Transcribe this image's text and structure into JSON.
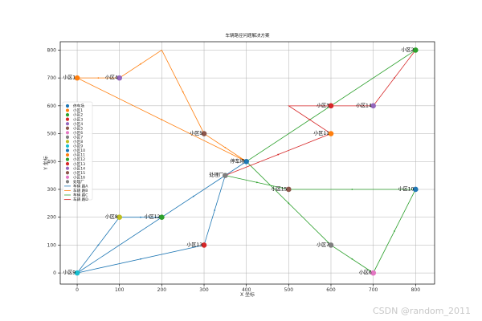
{
  "chart_data": {
    "type": "scatter",
    "title": "车辆路径问题解决方案",
    "xlabel": "X 坐标",
    "ylabel": "Y 坐标",
    "xlim": [
      -40,
      845
    ],
    "ylim": [
      -40,
      830
    ],
    "xticks": [
      0,
      100,
      200,
      300,
      400,
      500,
      600,
      700,
      800
    ],
    "yticks": [
      0,
      100,
      200,
      300,
      400,
      500,
      600,
      700,
      800
    ],
    "grid": true,
    "legend_position": "center-left",
    "points": [
      {
        "label": "停车场",
        "x": 400,
        "y": 400,
        "color": "#1f77b4"
      },
      {
        "label": "小区1",
        "x": 0,
        "y": 700,
        "color": "#ff7f0e"
      },
      {
        "label": "小区2",
        "x": 800,
        "y": 800,
        "color": "#2ca02c"
      },
      {
        "label": "小区3",
        "x": 600,
        "y": 600,
        "color": "#d62728"
      },
      {
        "label": "小区4",
        "x": 100,
        "y": 700,
        "color": "#9467bd"
      },
      {
        "label": "小区5",
        "x": 300,
        "y": 500,
        "color": "#8c564b"
      },
      {
        "label": "小区6",
        "x": 700,
        "y": 0,
        "color": "#e377c2"
      },
      {
        "label": "小区7",
        "x": 600,
        "y": 100,
        "color": "#7f7f7f"
      },
      {
        "label": "小区8",
        "x": 100,
        "y": 200,
        "color": "#bcbd22"
      },
      {
        "label": "小区9",
        "x": 0,
        "y": 0,
        "color": "#17becf"
      },
      {
        "label": "小区10",
        "x": 800,
        "y": 300,
        "color": "#1f77b4"
      },
      {
        "label": "小区11",
        "x": 600,
        "y": 500,
        "color": "#ff7f0e"
      },
      {
        "label": "小区12",
        "x": 200,
        "y": 200,
        "color": "#2ca02c"
      },
      {
        "label": "小区13",
        "x": 300,
        "y": 100,
        "color": "#d62728"
      },
      {
        "label": "小区14",
        "x": 700,
        "y": 600,
        "color": "#9467bd"
      },
      {
        "label": "小区15",
        "x": 500,
        "y": 300,
        "color": "#8c564b"
      },
      {
        "label": "小区16",
        "x": 700,
        "y": 0,
        "color": "#e377c2"
      },
      {
        "label": "处理厂",
        "x": 350,
        "y": 350,
        "color": "#7f7f7f"
      }
    ],
    "point_labels": [
      {
        "text": "停车场",
        "x": 400,
        "y": 400
      },
      {
        "text": "小区1",
        "x": 0,
        "y": 700
      },
      {
        "text": "小区2",
        "x": 800,
        "y": 800
      },
      {
        "text": "小区3",
        "x": 600,
        "y": 600
      },
      {
        "text": "小区4",
        "x": 100,
        "y": 700
      },
      {
        "text": "小区5",
        "x": 300,
        "y": 500
      },
      {
        "text": "小区6",
        "x": 700,
        "y": 0
      },
      {
        "text": "小区7",
        "x": 600,
        "y": 100
      },
      {
        "text": "小区8",
        "x": 100,
        "y": 200
      },
      {
        "text": "小区9",
        "x": 0,
        "y": 0
      },
      {
        "text": "小区10",
        "x": 800,
        "y": 300
      },
      {
        "text": "小区11",
        "x": 600,
        "y": 500
      },
      {
        "text": "小区12",
        "x": 200,
        "y": 200
      },
      {
        "text": "小区13",
        "x": 300,
        "y": 100
      },
      {
        "text": "小区14",
        "x": 700,
        "y": 600
      },
      {
        "text": "小区15",
        "x": 500,
        "y": 300
      },
      {
        "text": "处理厂",
        "x": 350,
        "y": 350
      }
    ],
    "series": [
      {
        "name": "车辆 路A",
        "color": "#1f77b4",
        "path": [
          [
            400,
            400
          ],
          [
            0,
            0
          ],
          [
            300,
            100
          ],
          [
            350,
            350
          ],
          [
            200,
            200
          ],
          [
            100,
            200
          ],
          [
            0,
            0
          ]
        ]
      },
      {
        "name": "车辆 路B",
        "color": "#ff7f0e",
        "path": [
          [
            400,
            400
          ],
          [
            0,
            700
          ],
          [
            100,
            700
          ],
          [
            200,
            800
          ],
          [
            300,
            500
          ],
          [
            400,
            400
          ]
        ]
      },
      {
        "name": "车辆 路C",
        "color": "#2ca02c",
        "path": [
          [
            350,
            350
          ],
          [
            500,
            300
          ],
          [
            800,
            300
          ],
          [
            700,
            0
          ],
          [
            600,
            100
          ],
          [
            400,
            400
          ],
          [
            800,
            800
          ]
        ]
      },
      {
        "name": "车辆 路D",
        "color": "#d62728",
        "path": [
          [
            350,
            350
          ],
          [
            600,
            500
          ],
          [
            500,
            600
          ],
          [
            700,
            600
          ],
          [
            800,
            800
          ]
        ]
      }
    ]
  },
  "watermark": "CSDN @random_2011"
}
